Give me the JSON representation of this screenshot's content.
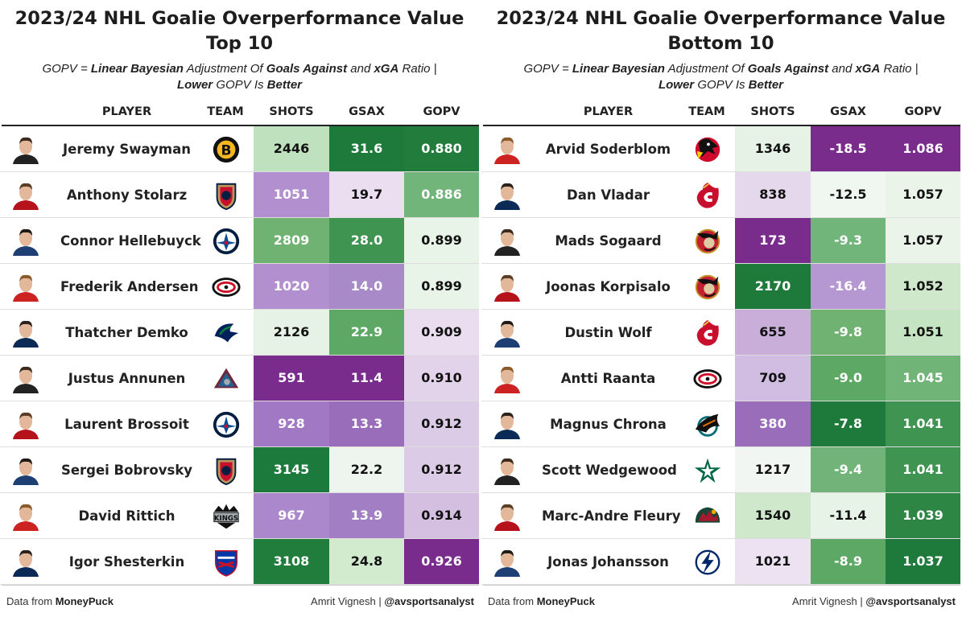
{
  "chart_data": [
    {
      "type": "table",
      "title": "2023/24 NHL Goalie Overperformance Value",
      "subtitle_line1": "Top 10",
      "description": {
        "p1": "GOPV = ",
        "b1": "Linear Bayesian",
        "p2": " Adjustment Of ",
        "b2": "Goals Against",
        "p3": " and ",
        "b3": "xGA",
        "p4": " Ratio |",
        "b4": "Lower",
        "p5": " GOPV Is ",
        "b5": "Better"
      },
      "columns": [
        "PLAYER",
        "TEAM",
        "SHOTS",
        "GSAX",
        "GOPV"
      ],
      "rows": [
        {
          "player": "Jeremy Swayman",
          "team": "BOS",
          "team_logo": "bruins-logo-icon",
          "shots": "2446",
          "gsax": "31.6",
          "gopv": "0.880"
        },
        {
          "player": "Anthony Stolarz",
          "team": "FLA",
          "team_logo": "panthers-logo-icon",
          "shots": "1051",
          "gsax": "19.7",
          "gopv": "0.886"
        },
        {
          "player": "Connor Hellebuyck",
          "team": "WPG",
          "team_logo": "jets-logo-icon",
          "shots": "2809",
          "gsax": "28.0",
          "gopv": "0.899"
        },
        {
          "player": "Frederik Andersen",
          "team": "CAR",
          "team_logo": "hurricanes-logo-icon",
          "shots": "1020",
          "gsax": "14.0",
          "gopv": "0.899"
        },
        {
          "player": "Thatcher Demko",
          "team": "VAN",
          "team_logo": "canucks-logo-icon",
          "shots": "2126",
          "gsax": "22.9",
          "gopv": "0.909"
        },
        {
          "player": "Justus Annunen",
          "team": "COL",
          "team_logo": "avalanche-logo-icon",
          "shots": "591",
          "gsax": "11.4",
          "gopv": "0.910"
        },
        {
          "player": "Laurent Brossoit",
          "team": "WPG",
          "team_logo": "jets-logo-icon",
          "shots": "928",
          "gsax": "13.3",
          "gopv": "0.912"
        },
        {
          "player": "Sergei Bobrovsky",
          "team": "FLA",
          "team_logo": "panthers-logo-icon",
          "shots": "3145",
          "gsax": "22.2",
          "gopv": "0.912"
        },
        {
          "player": "David Rittich",
          "team": "LAK",
          "team_logo": "kings-logo-icon",
          "shots": "967",
          "gsax": "13.9",
          "gopv": "0.914"
        },
        {
          "player": "Igor Shesterkin",
          "team": "NYR",
          "team_logo": "rangers-logo-icon",
          "shots": "3108",
          "gsax": "24.8",
          "gopv": "0.926"
        }
      ],
      "colors": {
        "shots": [
          "#bfe1bd",
          "#b28fcf",
          "#6fb271",
          "#b28fcf",
          "#e6f2e5",
          "#7a2c8c",
          "#a178c3",
          "#1c7a3c",
          "#ab87cb",
          "#207d3c"
        ],
        "gsax": [
          "#1e7a3a",
          "#ebdef1",
          "#3e9450",
          "#a98ac9",
          "#5ea866",
          "#7a2c8c",
          "#9a6dba",
          "#eef5ee",
          "#a27fc4",
          "#d2ebcf"
        ],
        "gopv": [
          "#227d3c",
          "#72b57a",
          "#e8f4e7",
          "#e8f4e7",
          "#e9ddef",
          "#e2d3ea",
          "#dccbe6",
          "#dccbe6",
          "#d4bfe1",
          "#7a2c8c"
        ]
      },
      "footer_left_prefix": "Data from ",
      "footer_left_source": "MoneyPuck",
      "footer_right_name": "Amrit Vignesh | ",
      "footer_right_handle": "@avsportsanalyst"
    },
    {
      "type": "table",
      "title": "2023/24 NHL Goalie Overperformance Value",
      "subtitle_line1": "Bottom 10",
      "description": {
        "p1": "GOPV = ",
        "b1": "Linear Bayesian",
        "p2": " Adjustment Of ",
        "b2": "Goals Against",
        "p3": " and ",
        "b3": "xGA",
        "p4": " Ratio |",
        "b4": "Lower",
        "p5": " GOPV Is ",
        "b5": "Better"
      },
      "columns": [
        "PLAYER",
        "TEAM",
        "SHOTS",
        "GSAX",
        "GOPV"
      ],
      "rows": [
        {
          "player": "Arvid Soderblom",
          "team": "CHI",
          "team_logo": "blackhawks-logo-icon",
          "shots": "1346",
          "gsax": "-18.5",
          "gopv": "1.086"
        },
        {
          "player": "Dan Vladar",
          "team": "CGY",
          "team_logo": "flames-logo-icon",
          "shots": "838",
          "gsax": "-12.5",
          "gopv": "1.057"
        },
        {
          "player": "Mads Sogaard",
          "team": "OTT",
          "team_logo": "senators-logo-icon",
          "shots": "173",
          "gsax": "-9.3",
          "gopv": "1.057"
        },
        {
          "player": "Joonas Korpisalo",
          "team": "OTT",
          "team_logo": "senators-logo-icon",
          "shots": "2170",
          "gsax": "-16.4",
          "gopv": "1.052"
        },
        {
          "player": "Dustin Wolf",
          "team": "CGY",
          "team_logo": "flames-logo-icon",
          "shots": "655",
          "gsax": "-9.8",
          "gopv": "1.051"
        },
        {
          "player": "Antti Raanta",
          "team": "CAR",
          "team_logo": "hurricanes-logo-icon",
          "shots": "709",
          "gsax": "-9.0",
          "gopv": "1.045"
        },
        {
          "player": "Magnus Chrona",
          "team": "SJS",
          "team_logo": "sharks-logo-icon",
          "shots": "380",
          "gsax": "-7.8",
          "gopv": "1.041"
        },
        {
          "player": "Scott Wedgewood",
          "team": "DAL",
          "team_logo": "stars-logo-icon",
          "shots": "1217",
          "gsax": "-9.4",
          "gopv": "1.041"
        },
        {
          "player": "Marc-Andre Fleury",
          "team": "MIN",
          "team_logo": "wild-logo-icon",
          "shots": "1540",
          "gsax": "-11.4",
          "gopv": "1.039"
        },
        {
          "player": "Jonas Johansson",
          "team": "TBL",
          "team_logo": "lightning-logo-icon",
          "shots": "1021",
          "gsax": "-8.9",
          "gopv": "1.037"
        }
      ],
      "colors": {
        "shots": [
          "#e6f2e5",
          "#e5d8ec",
          "#7a2c8c",
          "#1e7a3a",
          "#c8aed9",
          "#d1bce2",
          "#9a6dba",
          "#f2f6f2",
          "#cfe8cc",
          "#ede2f2"
        ],
        "gsax": [
          "#7a2c8c",
          "#f0f6f0",
          "#72b57a",
          "#b597d2",
          "#6fb271",
          "#5ea866",
          "#1e7a3a",
          "#71b378",
          "#e7f3e6",
          "#5ea866"
        ],
        "gopv": [
          "#7a2c8c",
          "#eaf4e9",
          "#eaf4e9",
          "#cfe8cc",
          "#c5e4c2",
          "#70b477",
          "#3e9450",
          "#3e9450",
          "#2e8645",
          "#1e7a3a"
        ]
      },
      "footer_left_prefix": "Data from ",
      "footer_left_source": "MoneyPuck",
      "footer_right_name": "Amrit Vignesh | ",
      "footer_right_handle": "@avsportsanalyst"
    }
  ]
}
